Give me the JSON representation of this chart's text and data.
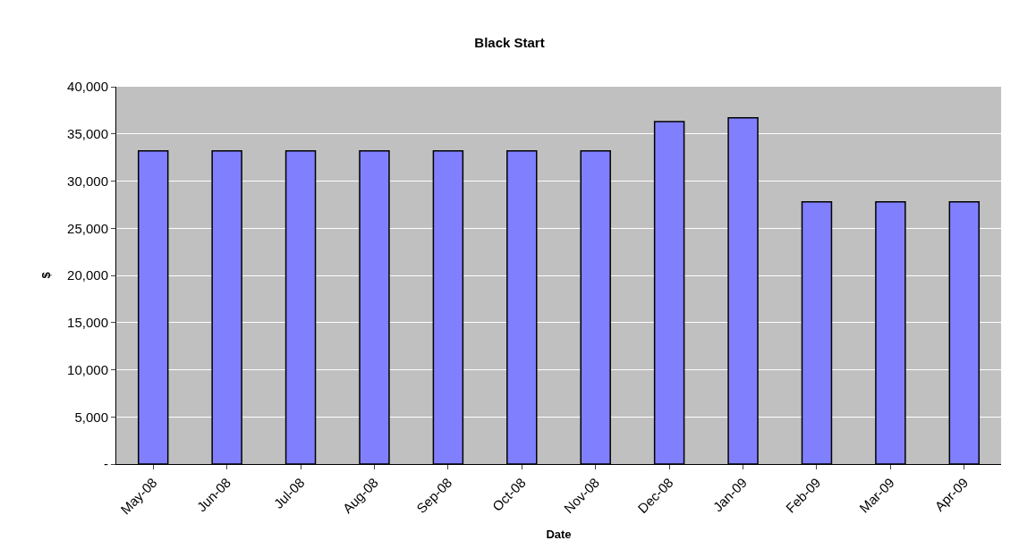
{
  "chart_data": {
    "type": "bar",
    "title": "Black Start",
    "xlabel": "Date",
    "ylabel": "$",
    "categories": [
      "May-08",
      "Jun-08",
      "Jul-08",
      "Aug-08",
      "Sep-08",
      "Oct-08",
      "Nov-08",
      "Dec-08",
      "Jan-09",
      "Feb-09",
      "Mar-09",
      "Apr-09"
    ],
    "values": [
      33200,
      33200,
      33200,
      33200,
      33200,
      33200,
      33200,
      36300,
      36700,
      27800,
      27800,
      27800
    ],
    "color": "#8080ff",
    "ylim": [
      0,
      40000
    ],
    "yticks": [
      {
        "value": 0,
        "label": "-"
      },
      {
        "value": 5000,
        "label": "5,000"
      },
      {
        "value": 10000,
        "label": "10,000"
      },
      {
        "value": 15000,
        "label": "15,000"
      },
      {
        "value": 20000,
        "label": "20,000"
      },
      {
        "value": 25000,
        "label": "25,000"
      },
      {
        "value": 30000,
        "label": "30,000"
      },
      {
        "value": 35000,
        "label": "35,000"
      },
      {
        "value": 40000,
        "label": "40,000"
      }
    ],
    "grid": "y"
  }
}
